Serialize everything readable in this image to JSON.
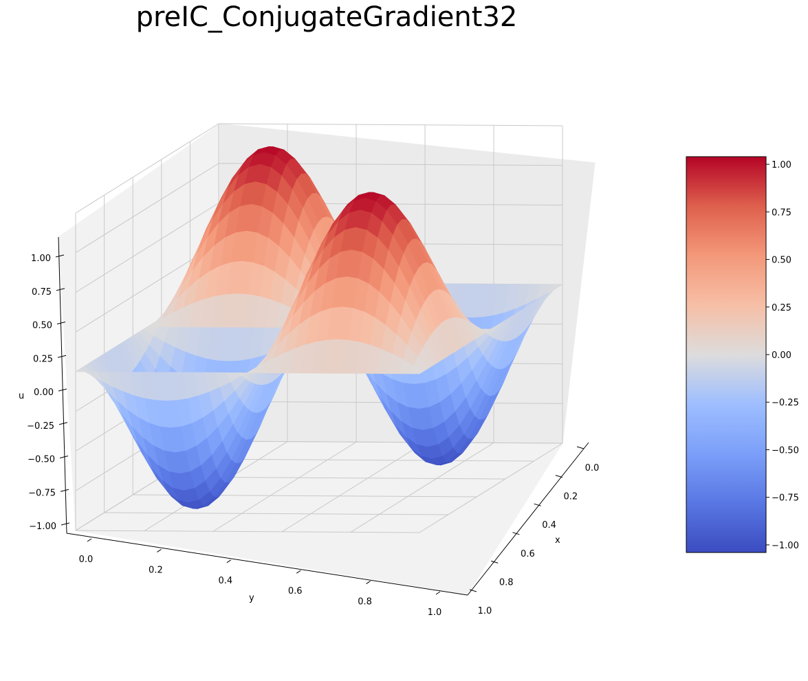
{
  "chart_data": {
    "type": "surface3d",
    "title": "preIC_ConjugateGradient32",
    "xlabel": "x",
    "ylabel": "y",
    "zlabel": "u",
    "x_range": [
      0,
      1
    ],
    "y_range": [
      0,
      1
    ],
    "z_range": [
      -1,
      1
    ],
    "x_ticks": [
      "0.0",
      "0.2",
      "0.4",
      "0.6",
      "0.8",
      "1.0"
    ],
    "y_ticks": [
      "0.0",
      "0.2",
      "0.4",
      "0.6",
      "0.8",
      "1.0"
    ],
    "z_ticks": [
      "−1.00",
      "−0.75",
      "−0.50",
      "−0.25",
      "0.00",
      "0.25",
      "0.50",
      "0.75",
      "1.00"
    ],
    "colormap": "coolwarm",
    "colorbar_ticks": [
      "−1.00",
      "−0.75",
      "−0.50",
      "−0.25",
      "0.00",
      "0.25",
      "0.50",
      "0.75",
      "1.00"
    ],
    "grid": true,
    "grid_resolution": 32,
    "surface": "u(x,y) = sin(2πx)·sin(2πy)"
  }
}
